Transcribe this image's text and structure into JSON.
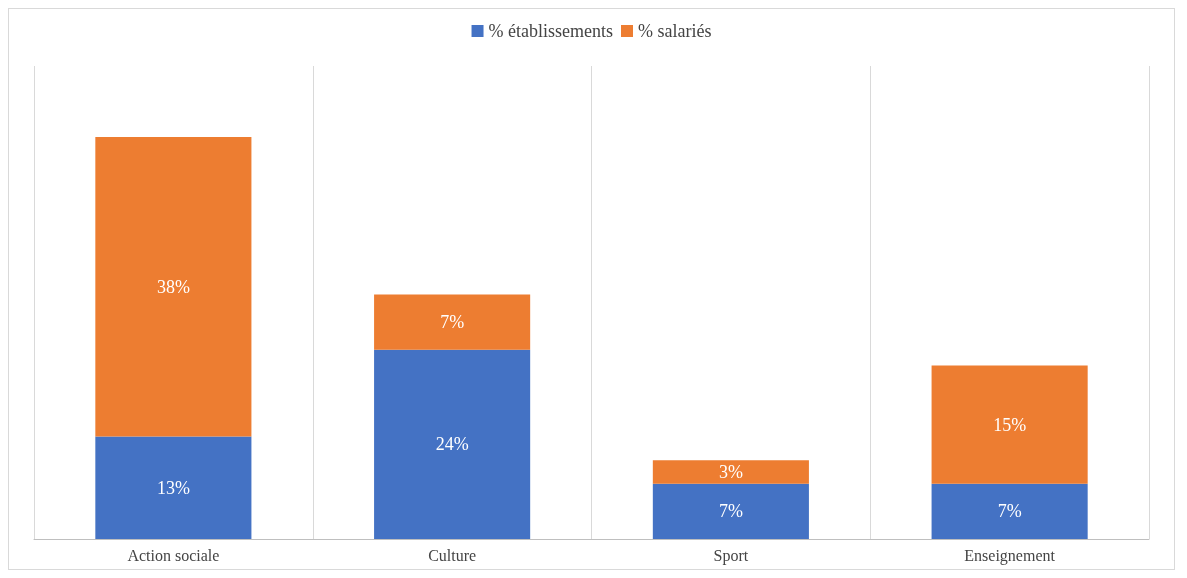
{
  "chart_data": {
    "type": "bar",
    "stacked": true,
    "grid": "x",
    "legend": "top",
    "tick_labels": "x",
    "categories": [
      "Action sociale",
      "Culture",
      "Sport",
      "Enseignement"
    ],
    "series": [
      {
        "name": "% établissements",
        "color": "#4472c4",
        "values": [
          13,
          24,
          7,
          7
        ],
        "value_labels": [
          "13%",
          "24%",
          "7%",
          "7%"
        ]
      },
      {
        "name": "% salariés",
        "color": "#ed7d31",
        "values": [
          38,
          7,
          3,
          15
        ],
        "value_labels": [
          "38%",
          "7%",
          "3%",
          "15%"
        ]
      }
    ]
  }
}
